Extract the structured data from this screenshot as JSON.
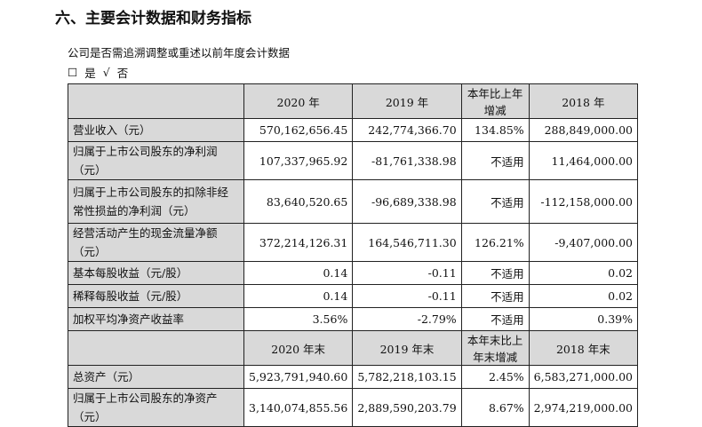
{
  "title": "六、主要会计数据和财务指标",
  "question": "公司是否需追溯调整或重述以前年度会计数据",
  "options": {
    "yes_box": "☐",
    "yes": "是",
    "no_check": "√",
    "no": "否"
  },
  "table1": {
    "headers": [
      "",
      "2020 年",
      "2019 年",
      "本年比上年增减",
      "2018 年"
    ],
    "rows": [
      [
        "营业收入（元）",
        "570,162,656.45",
        "242,774,366.70",
        "134.85%",
        "288,849,000.00"
      ],
      [
        "归属于上市公司股东的净利润（元）",
        "107,337,965.92",
        "-81,761,338.98",
        "不适用",
        "11,464,000.00"
      ],
      [
        "归属于上市公司股东的扣除非经常性损益的净利润（元）",
        "83,640,520.65",
        "-96,689,338.98",
        "不适用",
        "-112,158,000.00"
      ],
      [
        "经营活动产生的现金流量净额（元）",
        "372,214,126.31",
        "164,546,711.30",
        "126.21%",
        "-9,407,000.00"
      ],
      [
        "基本每股收益（元/股）",
        "0.14",
        "-0.11",
        "不适用",
        "0.02"
      ],
      [
        "稀释每股收益（元/股）",
        "0.14",
        "-0.11",
        "不适用",
        "0.02"
      ],
      [
        "加权平均净资产收益率",
        "3.56%",
        "-2.79%",
        "不适用",
        "0.39%"
      ]
    ]
  },
  "table2": {
    "headers": [
      "",
      "2020 年末",
      "2019 年末",
      "本年末比上年末增减",
      "2018 年末"
    ],
    "rows": [
      [
        "总资产（元）",
        "5,923,791,940.60",
        "5,782,218,103.15",
        "2.45%",
        "6,583,271,000.00"
      ],
      [
        "归属于上市公司股东的净资产（元）",
        "3,140,074,855.56",
        "2,889,590,203.79",
        "8.67%",
        "2,974,219,000.00"
      ]
    ]
  }
}
